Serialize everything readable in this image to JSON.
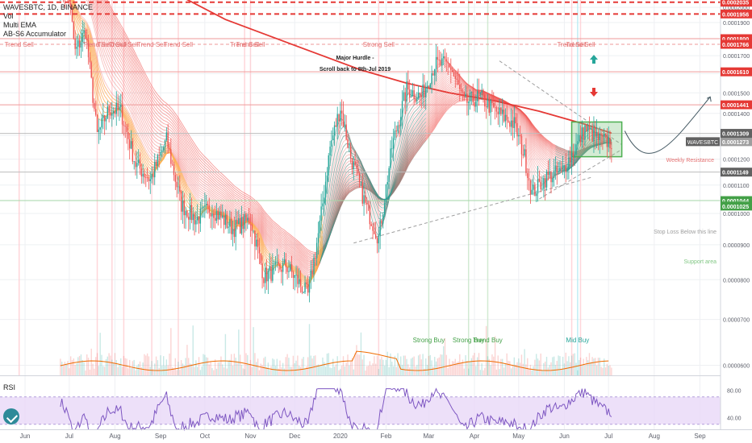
{
  "header": {
    "symbol_line": "WAVESBTC, 1D, BINANCE",
    "indicators": [
      "Vol",
      "Multi EMA",
      "AB-S6 Accumulator"
    ]
  },
  "rsi_label": "RSI",
  "colors": {
    "bg": "#ffffff",
    "grid": "#eef0f3",
    "up": "#26a69a",
    "down": "#ef5350",
    "ema200": "#e53935",
    "red_label": "#e53935",
    "green_label": "#43a047",
    "gray_label": "#9e9e9e",
    "dark_label": "#616161",
    "rsi_band": "#e9d8f7",
    "rsi_line": "#7e57c2",
    "box": "#4caf50",
    "sell_text": "#e57373",
    "buy_text": "#43a047",
    "midbuy_text": "#26a69a"
  },
  "annotations": {
    "major_hurdle": "Major Hurdle -",
    "scroll_back": "Scroll back to 8th-Jul 2019",
    "weekly_resistance": "Weekly Resistance",
    "stop_loss": "Stop Loss  Below this line",
    "support_area": "Support area"
  },
  "signals": [
    {
      "text": "Trend Sell",
      "x": "2019-05-28",
      "row": "top"
    },
    {
      "text": "Trend Sell",
      "x": "2019-07-20",
      "row": "top"
    },
    {
      "text": "Trend Sell",
      "x": "2019-07-30",
      "row": "top"
    },
    {
      "text": "Trend Sell",
      "x": "2019-08-07",
      "row": "top"
    },
    {
      "text": "Trend Sell",
      "x": "2019-08-26",
      "row": "top"
    },
    {
      "text": "Trend Sell",
      "x": "2019-09-13",
      "row": "top"
    },
    {
      "text": "Trend Sell",
      "x": "2019-10-28",
      "row": "top"
    },
    {
      "text": "Trend Sell",
      "x": "2019-11-01",
      "row": "top"
    },
    {
      "text": "Strong Sell",
      "x": "2020-01-27",
      "row": "top"
    },
    {
      "text": "Trend Sell",
      "x": "2020-06-06",
      "row": "top"
    },
    {
      "text": "Trend Sell",
      "x": "2020-06-12",
      "row": "top"
    },
    {
      "text": "Strong Buy",
      "x": "2020-03-01",
      "row": "bottom"
    },
    {
      "text": "Strong Buy",
      "x": "2020-03-28",
      "row": "bottom"
    },
    {
      "text": "Trend Buy",
      "x": "2020-04-10",
      "row": "bottom"
    },
    {
      "text": "Mid Buy",
      "x": "2020-06-10",
      "row": "bottom"
    }
  ],
  "price_axis": {
    "ticks": [
      "0.0002000",
      "0.0001900",
      "0.0001800",
      "0.0001700",
      "0.0001600",
      "0.0001500",
      "0.0001400",
      "0.0001300",
      "0.0001200",
      "0.0001100",
      "0.0001000",
      "0.0000900",
      "0.0000800",
      "0.0000700",
      "0.0000600"
    ],
    "ticks_visible": [
      "0.0001900",
      "0.0001700",
      "0.0001400",
      "0.0001200",
      "0.0000900",
      "0.0000800",
      "0.0000700",
      "0.0000600"
    ],
    "labels": [
      {
        "text": "0.0002035",
        "value": 0.0002035,
        "color": "red"
      },
      {
        "text": "0.0001956",
        "value": 0.0001956,
        "color": "red"
      },
      {
        "text": "0.0001800",
        "value": 0.00018,
        "color": "red"
      },
      {
        "text": "0.0001766",
        "value": 0.0001766,
        "color": "red"
      },
      {
        "text": "0.0001610",
        "value": 0.000161,
        "color": "red"
      },
      {
        "text": "0.0001441",
        "value": 0.0001441,
        "color": "red"
      },
      {
        "text": "0.0001273",
        "value": 0.0001273,
        "color": "gray"
      },
      {
        "text": "0.0001309",
        "value": 0.0001309,
        "color": "dark"
      },
      {
        "text": "0.0001149",
        "value": 0.0001149,
        "color": "dark"
      },
      {
        "text": "0.0001044",
        "value": 0.0001044,
        "color": "green"
      },
      {
        "text": "0.0001025",
        "value": 0.0001025,
        "color": "green"
      }
    ],
    "symbol_tag": "WAVESBTC"
  },
  "rsi_axis": {
    "ticks": [
      "80.00",
      "40.00"
    ]
  },
  "time_axis": {
    "labels": [
      {
        "text": "Jun",
        "date": "2019-06-01"
      },
      {
        "text": "Jul",
        "date": "2019-07-01"
      },
      {
        "text": "Aug",
        "date": "2019-08-01"
      },
      {
        "text": "Sep",
        "date": "2019-09-01"
      },
      {
        "text": "Oct",
        "date": "2019-10-01"
      },
      {
        "text": "Nov",
        "date": "2019-11-01"
      },
      {
        "text": "Dec",
        "date": "2019-12-01"
      },
      {
        "text": "2020",
        "date": "2020-01-01"
      },
      {
        "text": "Feb",
        "date": "2020-02-01"
      },
      {
        "text": "Mar",
        "date": "2020-03-01"
      },
      {
        "text": "Apr",
        "date": "2020-04-01"
      },
      {
        "text": "May",
        "date": "2020-05-01"
      },
      {
        "text": "Jun",
        "date": "2020-06-01"
      },
      {
        "text": "Jul",
        "date": "2020-07-01"
      },
      {
        "text": "Aug",
        "date": "2020-08-01"
      },
      {
        "text": "Sep",
        "date": "2020-09-01"
      }
    ]
  },
  "chart_data": {
    "type": "candlestick",
    "title": "WAVESBTC, 1D, BINANCE",
    "x_range": [
      "2019-05-15",
      "2020-09-15"
    ],
    "y_range": [
      5.8e-05,
      0.000205
    ],
    "y_scale": "log",
    "price_path": [
      {
        "date": "2019-06-25",
        "price": 0.00022
      },
      {
        "date": "2019-07-01",
        "price": 0.000205
      },
      {
        "date": "2019-07-05",
        "price": 0.000172
      },
      {
        "date": "2019-07-12",
        "price": 0.000185
      },
      {
        "date": "2019-07-20",
        "price": 0.00013
      },
      {
        "date": "2019-07-28",
        "price": 0.000142
      },
      {
        "date": "2019-08-05",
        "price": 0.000141
      },
      {
        "date": "2019-08-15",
        "price": 0.000118
      },
      {
        "date": "2019-08-25",
        "price": 0.000112
      },
      {
        "date": "2019-09-05",
        "price": 0.000128
      },
      {
        "date": "2019-09-15",
        "price": 0.000103
      },
      {
        "date": "2019-09-25",
        "price": 9.8e-05
      },
      {
        "date": "2019-10-05",
        "price": 0.000102
      },
      {
        "date": "2019-10-20",
        "price": 9.5e-05
      },
      {
        "date": "2019-11-01",
        "price": 9.8e-05
      },
      {
        "date": "2019-11-10",
        "price": 8.1e-05
      },
      {
        "date": "2019-11-25",
        "price": 8.4e-05
      },
      {
        "date": "2019-12-10",
        "price": 7.6e-05
      },
      {
        "date": "2019-12-18",
        "price": 9.6e-05
      },
      {
        "date": "2019-12-25",
        "price": 0.000125
      },
      {
        "date": "2020-01-01",
        "price": 0.000143
      },
      {
        "date": "2020-01-08",
        "price": 0.000121
      },
      {
        "date": "2020-01-18",
        "price": 0.000103
      },
      {
        "date": "2020-01-27",
        "price": 9.2e-05
      },
      {
        "date": "2020-02-05",
        "price": 0.000125
      },
      {
        "date": "2020-02-15",
        "price": 0.000152
      },
      {
        "date": "2020-02-25",
        "price": 0.000148
      },
      {
        "date": "2020-03-05",
        "price": 0.000165
      },
      {
        "date": "2020-03-15",
        "price": 0.000165
      },
      {
        "date": "2020-03-25",
        "price": 0.000145
      },
      {
        "date": "2020-04-05",
        "price": 0.000148
      },
      {
        "date": "2020-04-15",
        "price": 0.000141
      },
      {
        "date": "2020-04-28",
        "price": 0.000135
      },
      {
        "date": "2020-05-05",
        "price": 0.000121
      },
      {
        "date": "2020-05-10",
        "price": 0.000107
      },
      {
        "date": "2020-05-20",
        "price": 0.000113
      },
      {
        "date": "2020-05-30",
        "price": 0.000115
      },
      {
        "date": "2020-06-08",
        "price": 0.000124
      },
      {
        "date": "2020-06-15",
        "price": 0.000133
      },
      {
        "date": "2020-06-25",
        "price": 0.000128
      },
      {
        "date": "2020-07-03",
        "price": 0.000127
      }
    ],
    "ema200": [
      {
        "date": "2019-07-20",
        "price": 0.000245
      },
      {
        "date": "2019-09-01",
        "price": 0.000215
      },
      {
        "date": "2019-10-15",
        "price": 0.000192
      },
      {
        "date": "2019-12-01",
        "price": 0.000176
      },
      {
        "date": "2020-01-15",
        "price": 0.000162
      },
      {
        "date": "2020-02-15",
        "price": 0.000155
      },
      {
        "date": "2020-03-15",
        "price": 0.00015
      },
      {
        "date": "2020-04-15",
        "price": 0.000146
      },
      {
        "date": "2020-05-15",
        "price": 0.000141
      },
      {
        "date": "2020-06-15",
        "price": 0.000135
      },
      {
        "date": "2020-07-03",
        "price": 0.000131
      }
    ],
    "horizontal_levels": [
      0.0002035,
      0.0001956,
      0.00018,
      0.0001766,
      0.000161,
      0.0001441,
      0.0001309,
      0.0001149,
      0.0001044
    ],
    "grid": true
  }
}
